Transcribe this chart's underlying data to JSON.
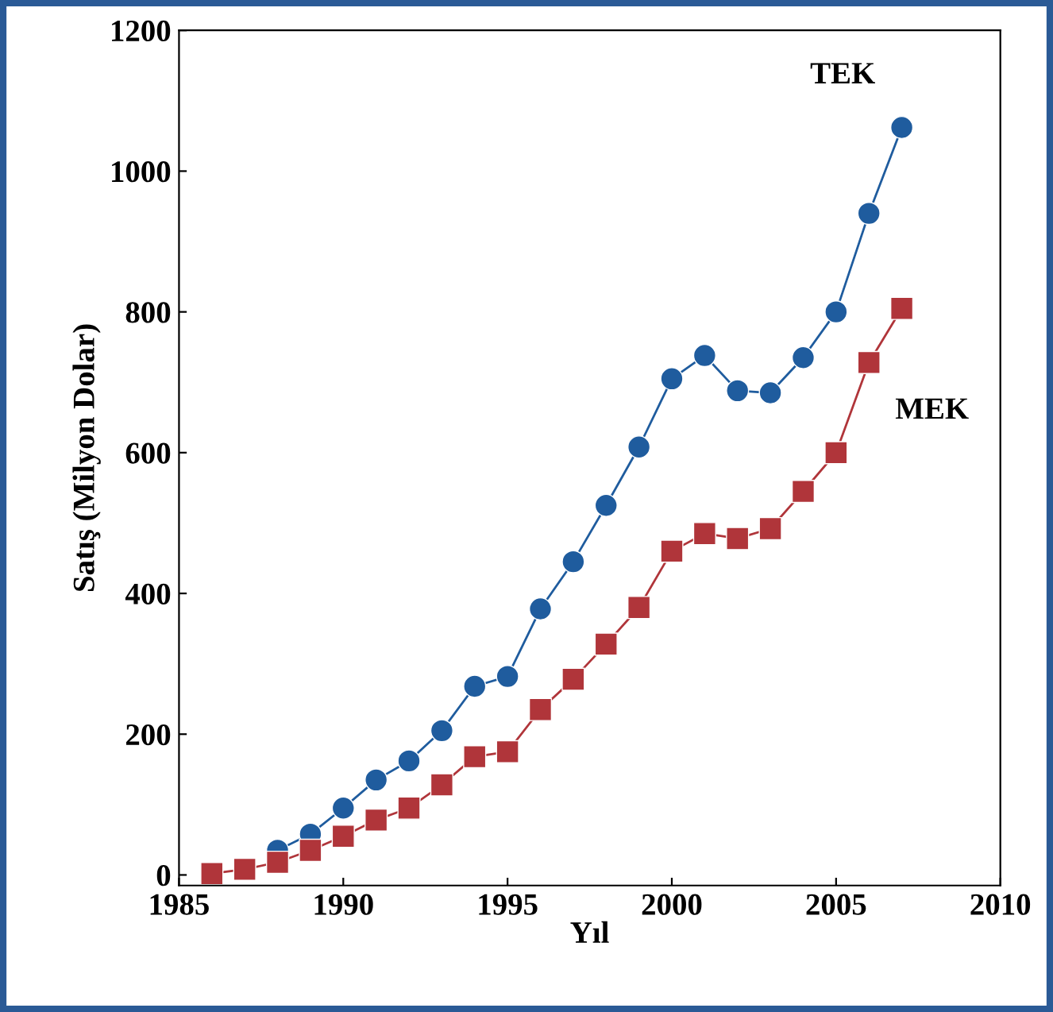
{
  "chart_data": {
    "type": "line",
    "xlabel": "Yıl",
    "ylabel": "Satış (Milyon Dolar)",
    "x": [
      1986,
      1987,
      1988,
      1989,
      1990,
      1991,
      1992,
      1993,
      1994,
      1995,
      1996,
      1997,
      1998,
      1999,
      2000,
      2001,
      2002,
      2003,
      2004,
      2005,
      2006,
      2007
    ],
    "series": [
      {
        "name": "TEK",
        "color": "#1f5c9e",
        "marker": "circle",
        "values": [
          null,
          null,
          35,
          58,
          95,
          135,
          162,
          205,
          268,
          282,
          378,
          445,
          525,
          608,
          705,
          738,
          688,
          685,
          735,
          800,
          940,
          1062
        ]
      },
      {
        "name": "MEK",
        "color": "#b0353a",
        "marker": "square",
        "values": [
          2,
          8,
          18,
          35,
          55,
          78,
          95,
          128,
          168,
          175,
          235,
          278,
          328,
          380,
          460,
          485,
          478,
          492,
          545,
          600,
          728,
          805
        ]
      }
    ],
    "xlim": [
      1985,
      2010
    ],
    "xticks": [
      1985,
      1990,
      1995,
      2000,
      2005,
      2010
    ],
    "ylim": [
      -15,
      1200
    ],
    "yticks": [
      0,
      200,
      400,
      600,
      800,
      1000,
      1200
    ],
    "grid": false,
    "legend": false
  }
}
